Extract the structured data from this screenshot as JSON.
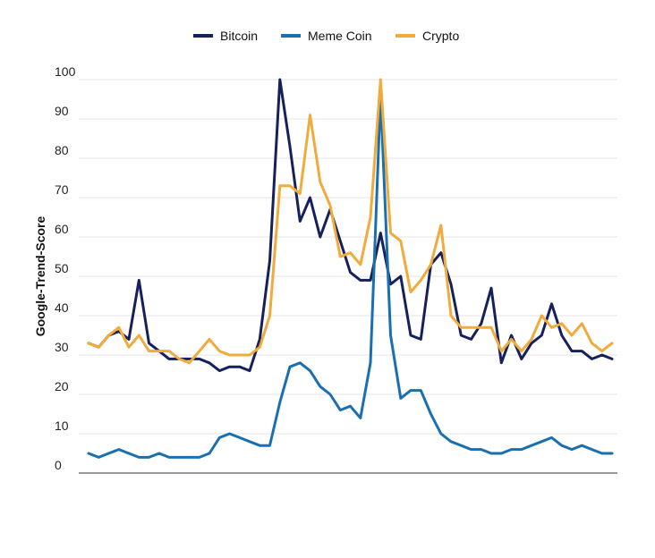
{
  "chart_data": {
    "type": "line",
    "title": "",
    "xlabel": "",
    "ylabel": "Google-Trend-Score",
    "ylim": [
      0,
      100
    ],
    "yticks": [
      "0",
      "10",
      "20",
      "30",
      "40",
      "50",
      "60",
      "70",
      "80",
      "90",
      "100"
    ],
    "grid": "horizontal",
    "legend": "top-center",
    "series": [
      {
        "name": "Bitcoin",
        "color": "#16215b",
        "values": [
          33,
          32,
          35,
          36,
          34,
          49,
          33,
          31,
          29,
          29,
          29,
          29,
          28,
          26,
          27,
          27,
          26,
          34,
          54,
          100,
          83,
          64,
          70,
          60,
          67,
          59,
          51,
          49,
          49,
          61,
          48,
          50,
          35,
          34,
          53,
          56,
          48,
          35,
          34,
          38,
          47,
          28,
          35,
          29,
          33,
          35,
          43,
          35,
          31,
          31,
          29,
          30,
          29
        ]
      },
      {
        "name": "Meme Coin",
        "color": "#1a6fb0",
        "values": [
          5,
          4,
          5,
          6,
          5,
          4,
          4,
          5,
          4,
          4,
          4,
          4,
          5,
          9,
          10,
          9,
          8,
          7,
          7,
          18,
          27,
          28,
          26,
          22,
          20,
          16,
          17,
          14,
          28,
          96,
          35,
          19,
          21,
          21,
          15,
          10,
          8,
          7,
          6,
          6,
          5,
          5,
          6,
          6,
          7,
          8,
          9,
          7,
          6,
          7,
          6,
          5,
          5
        ]
      },
      {
        "name": "Crypto",
        "color": "#f0ab3c",
        "values": [
          33,
          32,
          35,
          37,
          32,
          35,
          31,
          31,
          31,
          29,
          28,
          31,
          34,
          31,
          30,
          30,
          30,
          32,
          40,
          73,
          73,
          71,
          91,
          74,
          68,
          55,
          56,
          53,
          65,
          100,
          61,
          59,
          46,
          49,
          53,
          63,
          40,
          37,
          37,
          37,
          37,
          31,
          34,
          31,
          34,
          40,
          37,
          38,
          35,
          38,
          33,
          31,
          33
        ]
      }
    ]
  }
}
